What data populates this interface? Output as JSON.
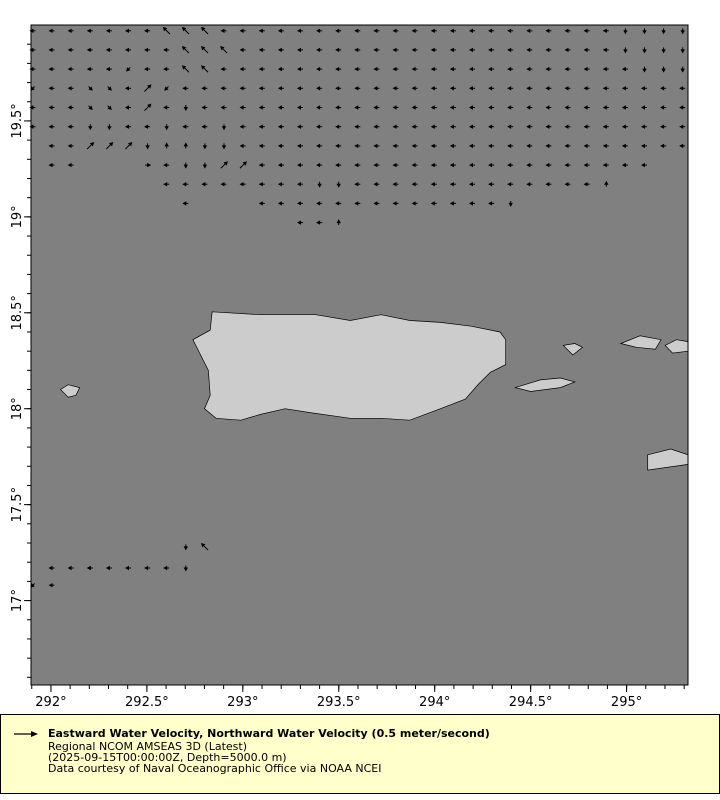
{
  "map": {
    "extent": {
      "lon": [
        291.896,
        295.32
      ],
      "lat": [
        16.56,
        20.0
      ]
    },
    "colors": {
      "ocean": "#808080",
      "land": "#cccccc",
      "coast": "#000000",
      "arrow": "#000000"
    },
    "lon_ticks": [
      292,
      292.5,
      293,
      293.5,
      294,
      294.5,
      295
    ],
    "lon_labels": [
      "292°",
      "292.5°",
      "293°",
      "293.5°",
      "294°",
      "294.5°",
      "295°"
    ],
    "lat_ticks": [
      17,
      17.5,
      18,
      18.5,
      19,
      19.5
    ],
    "lat_labels": [
      "17°",
      "17.5°",
      "18°",
      "18.5°",
      "19°",
      "19.5°"
    ],
    "minor_tick_step_deg": 0.1,
    "land": [
      {
        "name": "Puerto Rico",
        "coords": [
          [
            292.84,
            18.505
          ],
          [
            293.09,
            18.49
          ],
          [
            293.38,
            18.49
          ],
          [
            293.56,
            18.46
          ],
          [
            293.72,
            18.49
          ],
          [
            293.87,
            18.46
          ],
          [
            294.03,
            18.45
          ],
          [
            294.19,
            18.43
          ],
          [
            294.34,
            18.4
          ],
          [
            294.37,
            18.36
          ],
          [
            294.37,
            18.23
          ],
          [
            294.29,
            18.19
          ],
          [
            294.23,
            18.13
          ],
          [
            294.16,
            18.05
          ],
          [
            294.03,
            18.0
          ],
          [
            293.87,
            17.94
          ],
          [
            293.72,
            17.95
          ],
          [
            293.56,
            17.95
          ],
          [
            293.35,
            17.98
          ],
          [
            293.22,
            18.0
          ],
          [
            293.09,
            17.97
          ],
          [
            292.99,
            17.94
          ],
          [
            292.86,
            17.95
          ],
          [
            292.8,
            18.0
          ],
          [
            292.83,
            18.07
          ],
          [
            292.82,
            18.2
          ],
          [
            292.78,
            18.28
          ],
          [
            292.74,
            18.36
          ],
          [
            292.83,
            18.41
          ]
        ]
      },
      {
        "name": "Mona",
        "coords": [
          [
            292.05,
            18.1
          ],
          [
            292.09,
            18.125
          ],
          [
            292.15,
            18.11
          ],
          [
            292.13,
            18.07
          ],
          [
            292.09,
            18.06
          ]
        ]
      },
      {
        "name": "Vieques",
        "coords": [
          [
            294.42,
            18.11
          ],
          [
            294.55,
            18.15
          ],
          [
            294.655,
            18.16
          ],
          [
            294.73,
            18.14
          ],
          [
            294.655,
            18.11
          ],
          [
            294.5,
            18.09
          ]
        ]
      },
      {
        "name": "Culebra",
        "coords": [
          [
            294.67,
            18.33
          ],
          [
            294.73,
            18.34
          ],
          [
            294.77,
            18.32
          ],
          [
            294.72,
            18.28
          ],
          [
            294.69,
            18.31
          ]
        ]
      },
      {
        "name": "St Thomas",
        "coords": [
          [
            294.97,
            18.34
          ],
          [
            295.07,
            18.38
          ],
          [
            295.18,
            18.36
          ],
          [
            295.15,
            18.31
          ],
          [
            295.05,
            18.32
          ]
        ]
      },
      {
        "name": "St John",
        "coords": [
          [
            295.2,
            18.33
          ],
          [
            295.26,
            18.36
          ],
          [
            295.32,
            18.35
          ],
          [
            295.32,
            18.3
          ],
          [
            295.24,
            18.29
          ]
        ]
      },
      {
        "name": "St Croix",
        "coords": [
          [
            295.11,
            17.76
          ],
          [
            295.23,
            17.79
          ],
          [
            295.32,
            17.76
          ],
          [
            295.32,
            17.71
          ],
          [
            295.11,
            17.68
          ]
        ]
      }
    ],
    "vectors": {
      "lon_start": 291.906,
      "lon_step": 0.0996,
      "rows": [
        {
          "lat": 19.97,
          "start": 0,
          "dirs": "WWWWWWWwwwWWWWWWWWWWWWWWWWWWWWWSSSS"
        },
        {
          "lat": 19.87,
          "start": 0,
          "dirs": "WWWWWWWWwwwWWWWWWWWWWWWWWWWWWWWSSSS"
        },
        {
          "lat": 19.77,
          "start": 0,
          "dirs": "WWWWWsWWwwWWWWWWWWWWWWWWWWWWWWWWSSS"
        },
        {
          "lat": 19.67,
          "start": 0,
          "dirs": "sWWeeWnsWWWWWWWWWWWWWWWWWWWWWWWWWWW"
        },
        {
          "lat": 19.57,
          "start": 0,
          "dirs": "WWWeeWnWSWWWWWWWWWWWWWWWWWWWWWWWWWW"
        },
        {
          "lat": 19.47,
          "start": 0,
          "dirs": "WWWSSWWSWWSWWWWWWWWWWWWWWWWWWWWWWWW"
        },
        {
          "lat": 19.37,
          "start": 0,
          "dirs": ".WWnnnSNNSSWWWWWWWWWWWWWWWWWWWWWWWW"
        },
        {
          "lat": 19.27,
          "start": 0,
          "dirs": ".WW...EWSSnnWWWWWWWWWWWWWWWWWWWWW"
        },
        {
          "lat": 19.17,
          "start": 7,
          "dirs": "WWWWWWWWSSWWWWWWWWWWWWWN"
        },
        {
          "lat": 19.07,
          "start": 8,
          "dirs": "W...WWWWWWWWWWWWWS"
        },
        {
          "lat": 18.97,
          "start": 14,
          "dirs": "WWN"
        },
        {
          "lat": 17.28,
          "start": 8,
          "dirs": "Sw"
        },
        {
          "lat": 17.17,
          "start": 1,
          "dirs": "WWWWWWWS"
        },
        {
          "lat": 17.08,
          "start": 0,
          "dirs": "sW"
        }
      ]
    }
  },
  "legend": {
    "title": "Eastward Water Velocity, Northward Water Velocity (0.5 meter/second)",
    "line2": "Regional NCOM AMSEAS 3D (Latest)",
    "line3": "(2025-09-15T00:00:00Z, Depth=5000.0 m)",
    "line4": "Data courtesy of Naval Oceanographic Office via NOAA NCEI",
    "arrow_icon": "arrow-right-icon"
  }
}
